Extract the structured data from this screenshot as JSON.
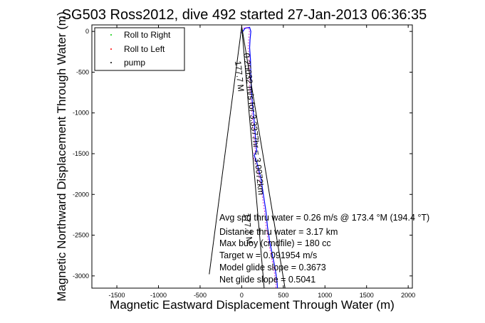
{
  "colors": {
    "roll_right": "#00cc00",
    "roll_left": "#ff0000",
    "pump": "#000000",
    "track": "#0000ff",
    "track_alt": "#cc00cc",
    "lines": "#000000"
  },
  "chart_data": {
    "type": "line",
    "title": "SG503 Ross2012, dive 492 started 27-Jan-2013 06:36:35",
    "xlabel": "Magnetic Eastward Displacement Through Water (m)",
    "ylabel": "Magnetic Northward Displacement Through Water (m)",
    "xlim": [
      -1800,
      2050
    ],
    "ylim": [
      -3150,
      80
    ],
    "xticks": [
      -1500,
      -1000,
      -500,
      0,
      500,
      1000,
      1500,
      2000
    ],
    "yticks": [
      0,
      -500,
      -1000,
      -1500,
      -2000,
      -2500,
      -3000
    ],
    "grid": false,
    "legend": {
      "position": "top-left",
      "entries": [
        "Roll to Right",
        "Roll to Left",
        "pump"
      ]
    },
    "series": [
      {
        "name": "track",
        "x": [
          0,
          40,
          95,
          110,
          100,
          95,
          105,
          110,
          115,
          130,
          150,
          165,
          175,
          180,
          150,
          180,
          230,
          260,
          290,
          310,
          340,
          360,
          380,
          400,
          415,
          425,
          430
        ],
        "y": [
          -20,
          40,
          50,
          0,
          -100,
          -200,
          -350,
          -500,
          -700,
          -900,
          -1100,
          -1300,
          -1400,
          -1470,
          -1520,
          -1600,
          -1800,
          -2000,
          -2200,
          -2400,
          -2600,
          -2700,
          -2800,
          -2900,
          -3000,
          -3080,
          -3150
        ]
      },
      {
        "name": "fan_left",
        "x": [
          0,
          -390
        ],
        "y": [
          60,
          -2980
        ]
      },
      {
        "name": "fan_right",
        "x": [
          0,
          520
        ],
        "y": [
          60,
          -3150
        ]
      },
      {
        "name": "fan_mid",
        "x": [
          0,
          270
        ],
        "y": [
          60,
          -3150
        ]
      }
    ],
    "annotations": {
      "speed_line": "0.25032 m/s for 3.3377hr = 3.0072km",
      "angle_line": "177.7 M",
      "dir_line": "177.7 M"
    }
  },
  "stats": [
    "Avg spd thru water = 0.26 m/s @ 173.4   °M (194.4 °T)",
    "Distance thru water = 3.17 km",
    "Max buoy (cmdfile) = 180 cc",
    "Target w = 0.091954 m/s",
    "Model glide slope = 0.3673",
    "Net glide slope = 0.5041"
  ]
}
